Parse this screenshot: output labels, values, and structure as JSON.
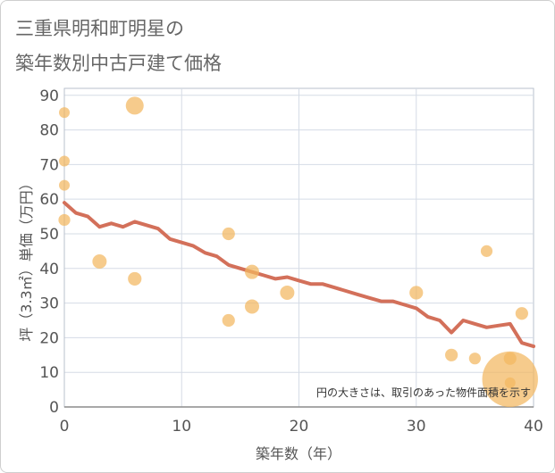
{
  "chart_data": {
    "type": "scatter",
    "title_lines": [
      "三重県明和町明星の",
      "築年数別中古戸建て価格"
    ],
    "xlabel": "築年数（年）",
    "ylabel": "坪（3.3㎡）単価（万円）",
    "annotation": "円の大きさは、取引のあった物件面積を示す",
    "xlim": [
      0,
      40
    ],
    "ylim": [
      0,
      92
    ],
    "xticks": [
      0,
      10,
      20,
      30,
      40
    ],
    "yticks": [
      0,
      10,
      20,
      30,
      40,
      50,
      60,
      70,
      80,
      90
    ],
    "grid": true,
    "scatter": {
      "size_meaning": "relative property area",
      "points": [
        {
          "x": 0,
          "y": 85,
          "size": 1.0
        },
        {
          "x": 0,
          "y": 71,
          "size": 1.0
        },
        {
          "x": 0,
          "y": 64,
          "size": 1.0
        },
        {
          "x": 0,
          "y": 54,
          "size": 1.2
        },
        {
          "x": 3,
          "y": 42,
          "size": 1.8
        },
        {
          "x": 6,
          "y": 87,
          "size": 2.8
        },
        {
          "x": 6,
          "y": 37,
          "size": 1.6
        },
        {
          "x": 14,
          "y": 50,
          "size": 1.4
        },
        {
          "x": 14,
          "y": 25,
          "size": 1.4
        },
        {
          "x": 16,
          "y": 39,
          "size": 1.8
        },
        {
          "x": 16,
          "y": 29,
          "size": 1.8
        },
        {
          "x": 19,
          "y": 33,
          "size": 1.8
        },
        {
          "x": 30,
          "y": 33,
          "size": 1.6
        },
        {
          "x": 33,
          "y": 15,
          "size": 1.4
        },
        {
          "x": 35,
          "y": 14,
          "size": 1.2
        },
        {
          "x": 36,
          "y": 45,
          "size": 1.2
        },
        {
          "x": 38,
          "y": 8,
          "size": 27.0
        },
        {
          "x": 38,
          "y": 14,
          "size": 1.4
        },
        {
          "x": 38,
          "y": 7,
          "size": 1.0
        },
        {
          "x": 39,
          "y": 27,
          "size": 1.4
        }
      ]
    },
    "line": {
      "x": [
        0,
        1,
        2,
        3,
        4,
        5,
        6,
        7,
        8,
        9,
        10,
        11,
        12,
        13,
        14,
        15,
        16,
        17,
        18,
        19,
        20,
        21,
        22,
        23,
        24,
        25,
        26,
        27,
        28,
        29,
        30,
        31,
        32,
        33,
        34,
        35,
        36,
        37,
        38,
        39,
        40
      ],
      "y": [
        59,
        56,
        55,
        52,
        53,
        52,
        53.5,
        52.5,
        51.5,
        48.5,
        47.5,
        46.5,
        44.5,
        43.5,
        41,
        40,
        39,
        38,
        37,
        37.5,
        36.5,
        35.5,
        35.5,
        34.5,
        33.5,
        32.5,
        31.5,
        30.5,
        30.5,
        29.5,
        28.5,
        26,
        25,
        21.5,
        25,
        24,
        23,
        23.5,
        24,
        18.5,
        17.5
      ]
    },
    "colors": {
      "bubble": "#f2b760",
      "line": "#d3705a",
      "grid": "#d5dce6",
      "frame": "#b9c1cc",
      "axis": "#8c8c8c"
    }
  }
}
